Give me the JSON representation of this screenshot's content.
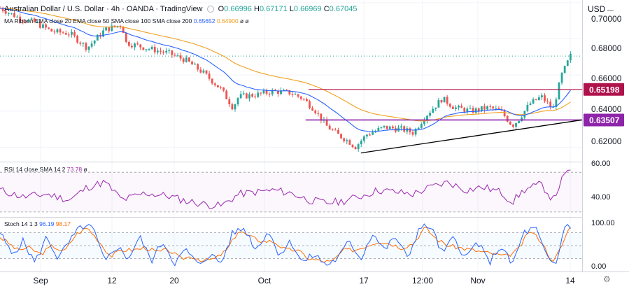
{
  "header": {
    "symbol": "Australian Dollar / U.S. Dollar · 4h · OANDA · TradingView",
    "o_label": "O",
    "o_value": "0.66996",
    "h_label": "H",
    "h_value": "0.67171",
    "l_label": "L",
    "l_value": "0.66969",
    "c_label": "C",
    "c_value": "0.67045",
    "ma_ribbon_label": "MA Ribbon EMA close 20 EMA close 50 SMA close 100 SMA close 200",
    "ma_value_1": "0.65652",
    "ma_value_2": "0.64900",
    "ma_value_3": "ø",
    "ma_value_4": "ø"
  },
  "currency_label": "USD",
  "rsi_label": "RSI 14 close SMA 14 2",
  "rsi_value": "73.78",
  "rsi_sma_value": "ø",
  "stoch_label": "Stoch 14 1 3",
  "stoch_k_value": "96.19",
  "stoch_d_value": "98.17",
  "colors": {
    "up_candle": "#26a69a",
    "down_candle": "#ef5350",
    "ema20": "#2962ff",
    "ema50": "#f0a020",
    "resistance_line": "#b0124c",
    "support_line": "#8e24aa",
    "trendline": "#000000",
    "rsi_line": "#9c27b0",
    "stoch_k": "#2962ff",
    "stoch_d": "#ff6d00"
  },
  "chart_data": {
    "type": "candlestick",
    "title": "Australian Dollar / U.S. Dollar · 4h · OANDA · TradingView",
    "x_ticks": [
      "Sep",
      "12",
      "20",
      "Oct",
      "17",
      "12:00",
      "Nov",
      "14"
    ],
    "price_ticks": [
      "0.70000",
      "0.68000",
      "0.66000",
      "0.64000",
      "0.62000"
    ],
    "ylim": [
      0.612,
      0.7015
    ],
    "current_price": 0.67045,
    "resistance": 0.65198,
    "support": 0.63507,
    "resistance_label": "0.65198",
    "support_label": "0.63507",
    "trendline": [
      [
        0.62,
        0.6168
      ],
      [
        0.98,
        0.6343
      ]
    ],
    "close_path": [
      [
        0.0,
        0.697
      ],
      [
        0.03,
        0.692
      ],
      [
        0.06,
        0.689
      ],
      [
        0.09,
        0.684
      ],
      [
        0.12,
        0.683
      ],
      [
        0.15,
        0.675
      ],
      [
        0.18,
        0.685
      ],
      [
        0.21,
        0.688
      ],
      [
        0.215,
        0.678
      ],
      [
        0.25,
        0.675
      ],
      [
        0.29,
        0.672
      ],
      [
        0.32,
        0.668
      ],
      [
        0.35,
        0.661
      ],
      [
        0.38,
        0.652
      ],
      [
        0.4,
        0.642
      ],
      [
        0.41,
        0.648
      ],
      [
        0.44,
        0.649
      ],
      [
        0.47,
        0.651
      ],
      [
        0.5,
        0.65
      ],
      [
        0.52,
        0.647
      ],
      [
        0.54,
        0.641
      ],
      [
        0.56,
        0.632
      ],
      [
        0.58,
        0.627
      ],
      [
        0.6,
        0.623
      ],
      [
        0.61,
        0.62
      ],
      [
        0.63,
        0.627
      ],
      [
        0.66,
        0.631
      ],
      [
        0.69,
        0.63
      ],
      [
        0.71,
        0.628
      ],
      [
        0.73,
        0.637
      ],
      [
        0.76,
        0.647
      ],
      [
        0.78,
        0.642
      ],
      [
        0.81,
        0.64
      ],
      [
        0.84,
        0.642
      ],
      [
        0.86,
        0.64
      ],
      [
        0.88,
        0.632
      ],
      [
        0.89,
        0.635
      ],
      [
        0.91,
        0.644
      ],
      [
        0.93,
        0.648
      ],
      [
        0.95,
        0.641
      ],
      [
        0.965,
        0.66
      ],
      [
        0.98,
        0.6705
      ]
    ],
    "rsi": {
      "ticks": [
        "60.00",
        "40.00"
      ],
      "ylim": [
        30,
        62
      ],
      "levels": [
        70,
        30
      ],
      "path": [
        [
          0.0,
          52
        ],
        [
          0.04,
          45
        ],
        [
          0.08,
          48
        ],
        [
          0.12,
          42
        ],
        [
          0.15,
          55
        ],
        [
          0.18,
          60
        ],
        [
          0.21,
          42
        ],
        [
          0.25,
          49
        ],
        [
          0.29,
          46
        ],
        [
          0.32,
          41
        ],
        [
          0.35,
          38
        ],
        [
          0.38,
          36
        ],
        [
          0.41,
          48
        ],
        [
          0.44,
          50
        ],
        [
          0.47,
          52
        ],
        [
          0.5,
          49
        ],
        [
          0.53,
          42
        ],
        [
          0.56,
          39
        ],
        [
          0.59,
          41
        ],
        [
          0.62,
          46
        ],
        [
          0.65,
          52
        ],
        [
          0.68,
          50
        ],
        [
          0.71,
          48
        ],
        [
          0.74,
          55
        ],
        [
          0.77,
          60
        ],
        [
          0.8,
          52
        ],
        [
          0.83,
          55
        ],
        [
          0.86,
          50
        ],
        [
          0.88,
          40
        ],
        [
          0.9,
          52
        ],
        [
          0.93,
          58
        ],
        [
          0.95,
          42
        ],
        [
          0.965,
          62
        ],
        [
          0.98,
          73.78
        ]
      ]
    },
    "stoch": {
      "ticks": [
        "100.00",
        "0.00"
      ],
      "ylim": [
        0,
        100
      ],
      "levels": [
        80,
        50,
        20
      ],
      "k_path": [
        [
          0.0,
          80
        ],
        [
          0.02,
          30
        ],
        [
          0.04,
          60
        ],
        [
          0.06,
          10
        ],
        [
          0.08,
          70
        ],
        [
          0.1,
          20
        ],
        [
          0.12,
          60
        ],
        [
          0.14,
          95
        ],
        [
          0.16,
          90
        ],
        [
          0.18,
          10
        ],
        [
          0.2,
          50
        ],
        [
          0.22,
          20
        ],
        [
          0.24,
          70
        ],
        [
          0.26,
          15
        ],
        [
          0.28,
          60
        ],
        [
          0.3,
          10
        ],
        [
          0.32,
          40
        ],
        [
          0.34,
          5
        ],
        [
          0.36,
          30
        ],
        [
          0.38,
          10
        ],
        [
          0.4,
          80
        ],
        [
          0.42,
          90
        ],
        [
          0.44,
          40
        ],
        [
          0.46,
          85
        ],
        [
          0.48,
          30
        ],
        [
          0.5,
          60
        ],
        [
          0.52,
          10
        ],
        [
          0.54,
          30
        ],
        [
          0.56,
          5
        ],
        [
          0.58,
          20
        ],
        [
          0.6,
          60
        ],
        [
          0.62,
          20
        ],
        [
          0.64,
          80
        ],
        [
          0.66,
          40
        ],
        [
          0.68,
          70
        ],
        [
          0.7,
          20
        ],
        [
          0.72,
          90
        ],
        [
          0.74,
          95
        ],
        [
          0.76,
          30
        ],
        [
          0.78,
          70
        ],
        [
          0.8,
          20
        ],
        [
          0.82,
          60
        ],
        [
          0.84,
          10
        ],
        [
          0.86,
          50
        ],
        [
          0.88,
          5
        ],
        [
          0.9,
          80
        ],
        [
          0.92,
          90
        ],
        [
          0.94,
          20
        ],
        [
          0.955,
          5
        ],
        [
          0.97,
          96.19
        ],
        [
          0.98,
          96.19
        ]
      ],
      "d_path": [
        [
          0.0,
          70
        ],
        [
          0.03,
          40
        ],
        [
          0.05,
          45
        ],
        [
          0.07,
          30
        ],
        [
          0.09,
          50
        ],
        [
          0.11,
          35
        ],
        [
          0.13,
          75
        ],
        [
          0.15,
          92
        ],
        [
          0.17,
          60
        ],
        [
          0.19,
          25
        ],
        [
          0.21,
          40
        ],
        [
          0.23,
          40
        ],
        [
          0.25,
          45
        ],
        [
          0.27,
          35
        ],
        [
          0.29,
          40
        ],
        [
          0.31,
          20
        ],
        [
          0.33,
          25
        ],
        [
          0.35,
          15
        ],
        [
          0.37,
          20
        ],
        [
          0.39,
          40
        ],
        [
          0.41,
          85
        ],
        [
          0.43,
          70
        ],
        [
          0.45,
          60
        ],
        [
          0.47,
          60
        ],
        [
          0.49,
          40
        ],
        [
          0.51,
          40
        ],
        [
          0.53,
          20
        ],
        [
          0.55,
          15
        ],
        [
          0.57,
          12
        ],
        [
          0.59,
          40
        ],
        [
          0.61,
          40
        ],
        [
          0.63,
          50
        ],
        [
          0.65,
          60
        ],
        [
          0.67,
          55
        ],
        [
          0.69,
          45
        ],
        [
          0.71,
          55
        ],
        [
          0.73,
          92
        ],
        [
          0.75,
          65
        ],
        [
          0.77,
          50
        ],
        [
          0.79,
          45
        ],
        [
          0.81,
          40
        ],
        [
          0.83,
          35
        ],
        [
          0.85,
          30
        ],
        [
          0.87,
          25
        ],
        [
          0.89,
          40
        ],
        [
          0.91,
          85
        ],
        [
          0.93,
          60
        ],
        [
          0.95,
          10
        ],
        [
          0.965,
          50
        ],
        [
          0.98,
          98.17
        ]
      ]
    }
  }
}
